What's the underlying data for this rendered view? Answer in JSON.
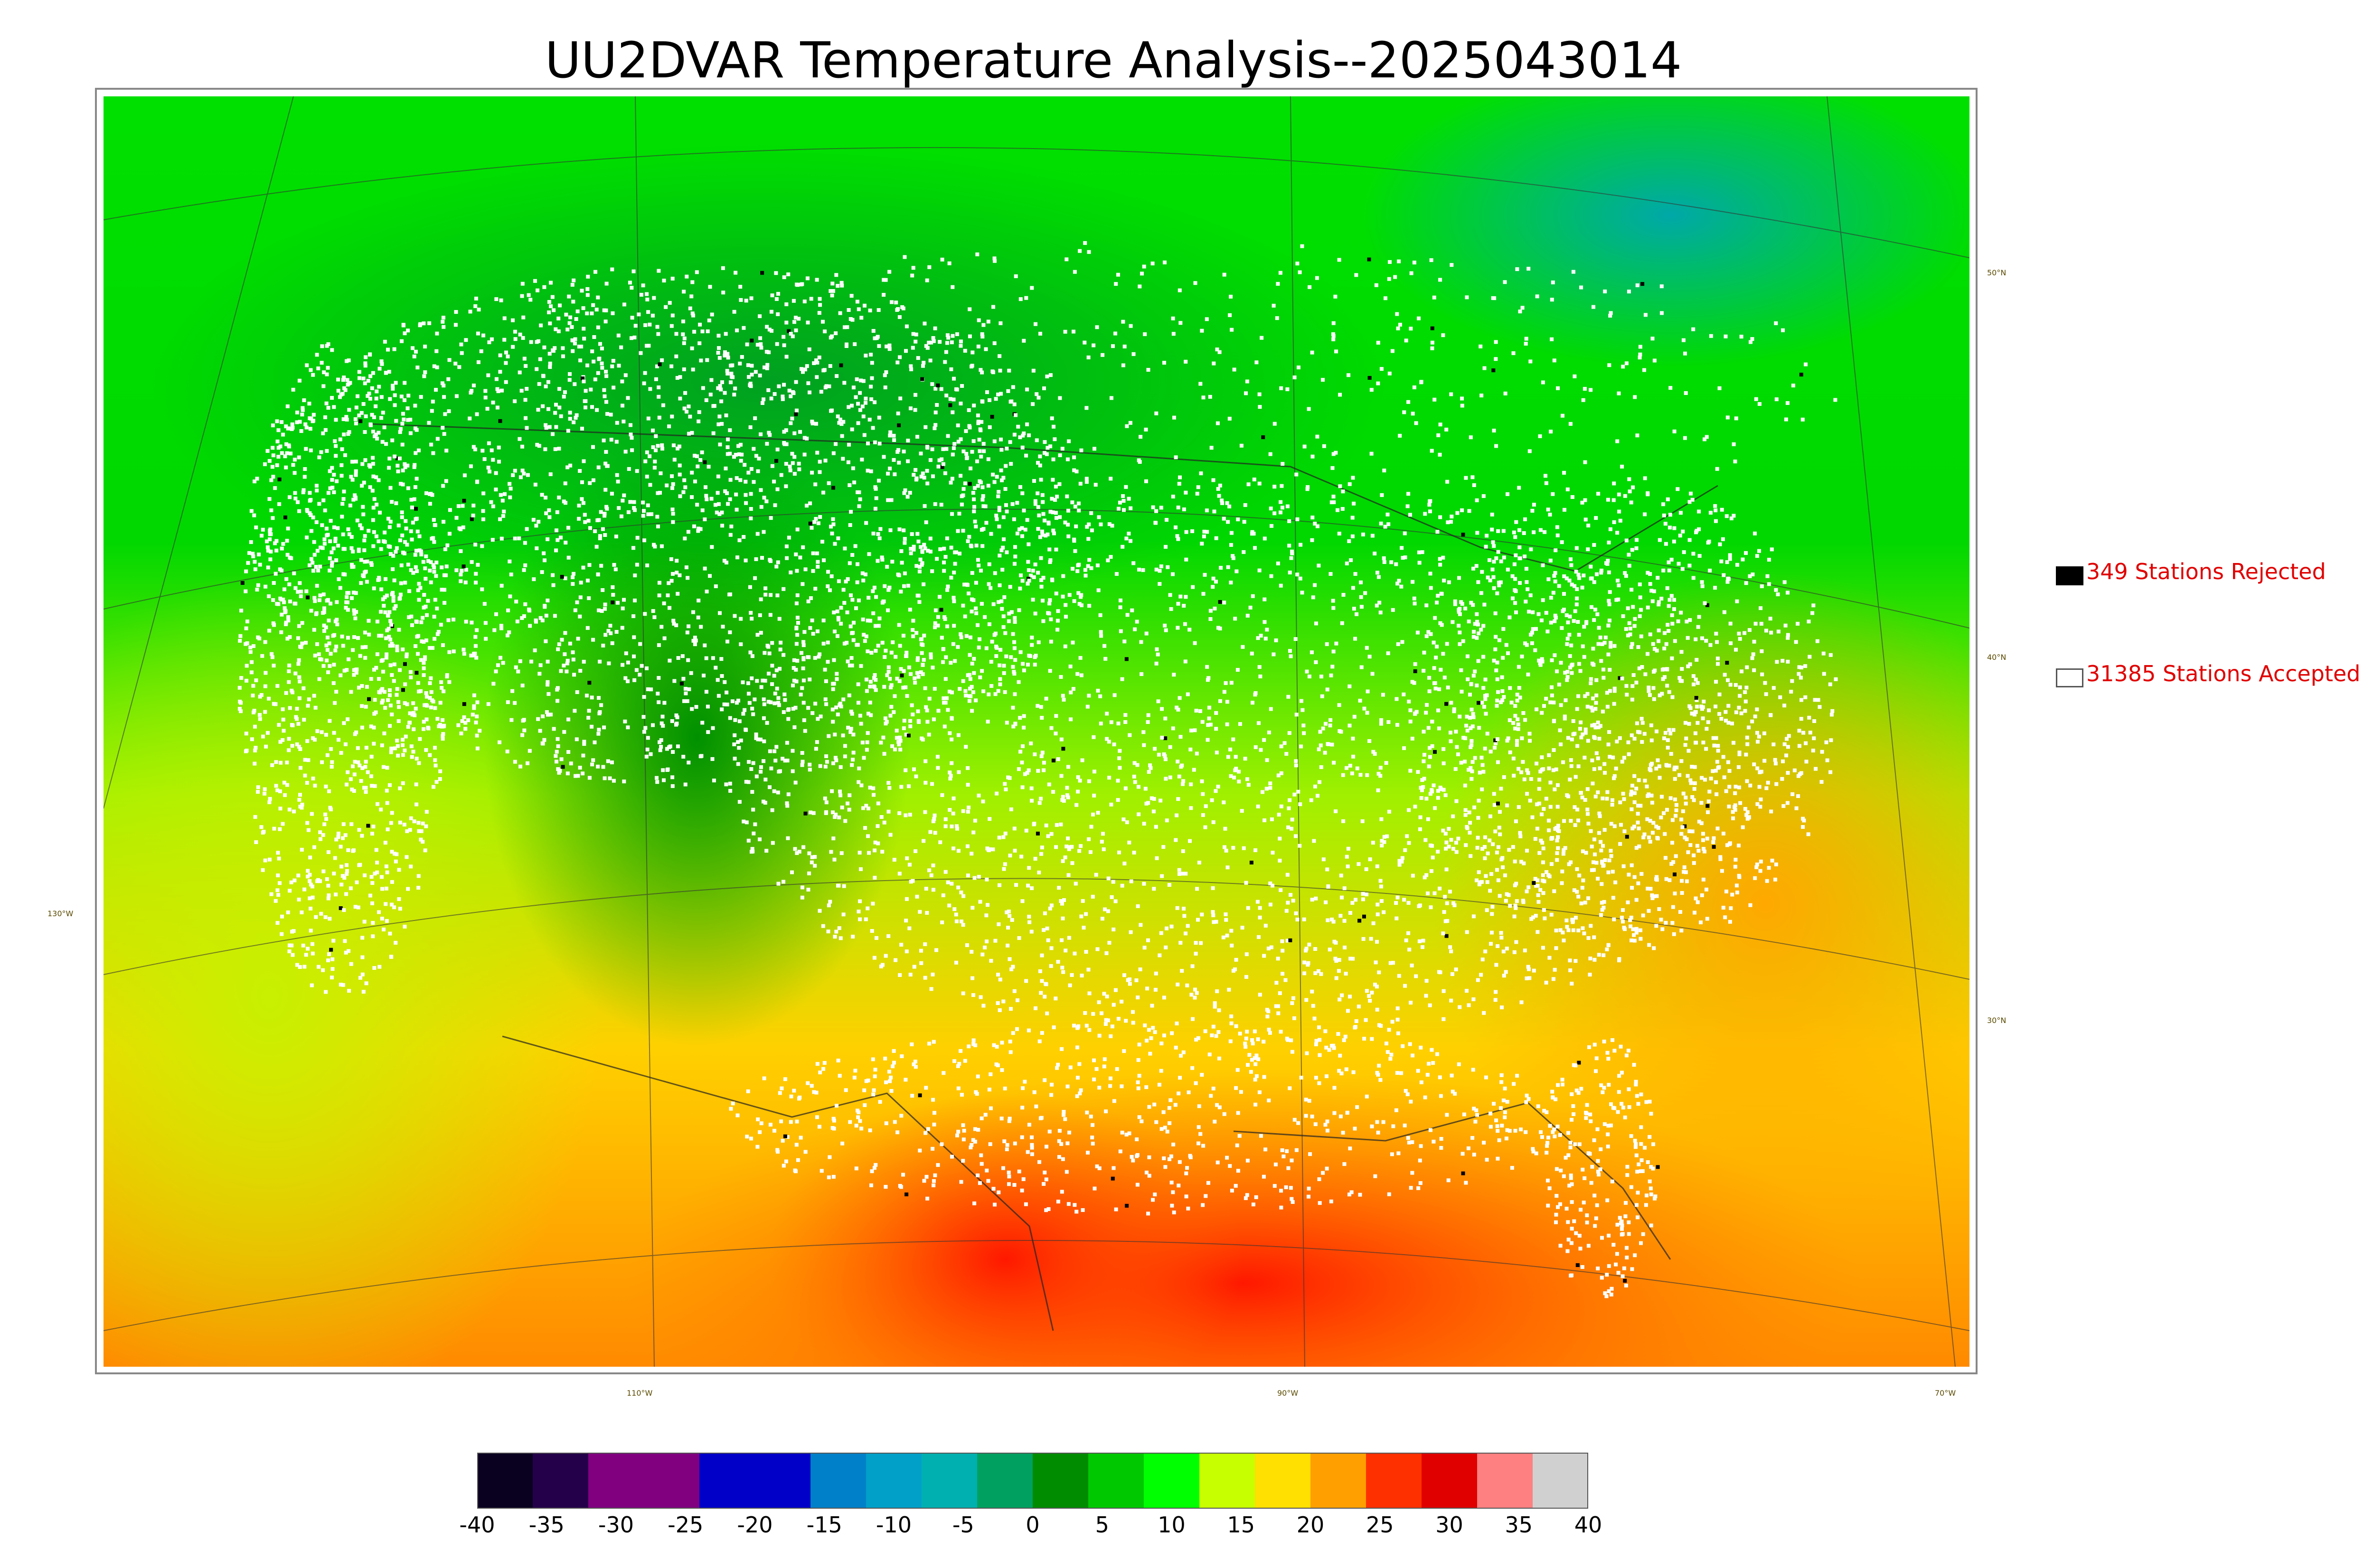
{
  "title": "UU2DVAR Temperature Analysis--2025043014",
  "legend": {
    "rejected": {
      "label": "349 Stations Rejected",
      "color": "#000000"
    },
    "accepted": {
      "label": "31385 Stations Accepted",
      "color": "#ffffff"
    }
  },
  "axes": {
    "latitude_labels": [
      "50°N",
      "40°N",
      "30°N"
    ],
    "longitude_labels": [
      "130°W",
      "110°W",
      "90°W",
      "70°W"
    ]
  },
  "colorbar": {
    "ticks": [
      "-40",
      "-35",
      "-30",
      "-25",
      "-20",
      "-15",
      "-10",
      "-5",
      "0",
      "5",
      "10",
      "15",
      "20",
      "25",
      "30",
      "35",
      "40"
    ],
    "range": [
      -40,
      40
    ],
    "colors": [
      "#0a0020",
      "#24004a",
      "#800080",
      "#800080",
      "#0000c8",
      "#0000c8",
      "#0080c8",
      "#00a0c8",
      "#00b0b0",
      "#00a060",
      "#008c00",
      "#00c800",
      "#00ff00",
      "#c8ff00",
      "#ffe000",
      "#ffa000",
      "#ff3000",
      "#e00000",
      "#ff8080",
      "#d0d0d0"
    ]
  },
  "map_colors": {
    "cold": "#00b0b0",
    "cool": "#008c00",
    "mild": "#00ff00",
    "warm": "#e0f000",
    "hot": "#ffa000",
    "very_hot": "#ff2000"
  }
}
